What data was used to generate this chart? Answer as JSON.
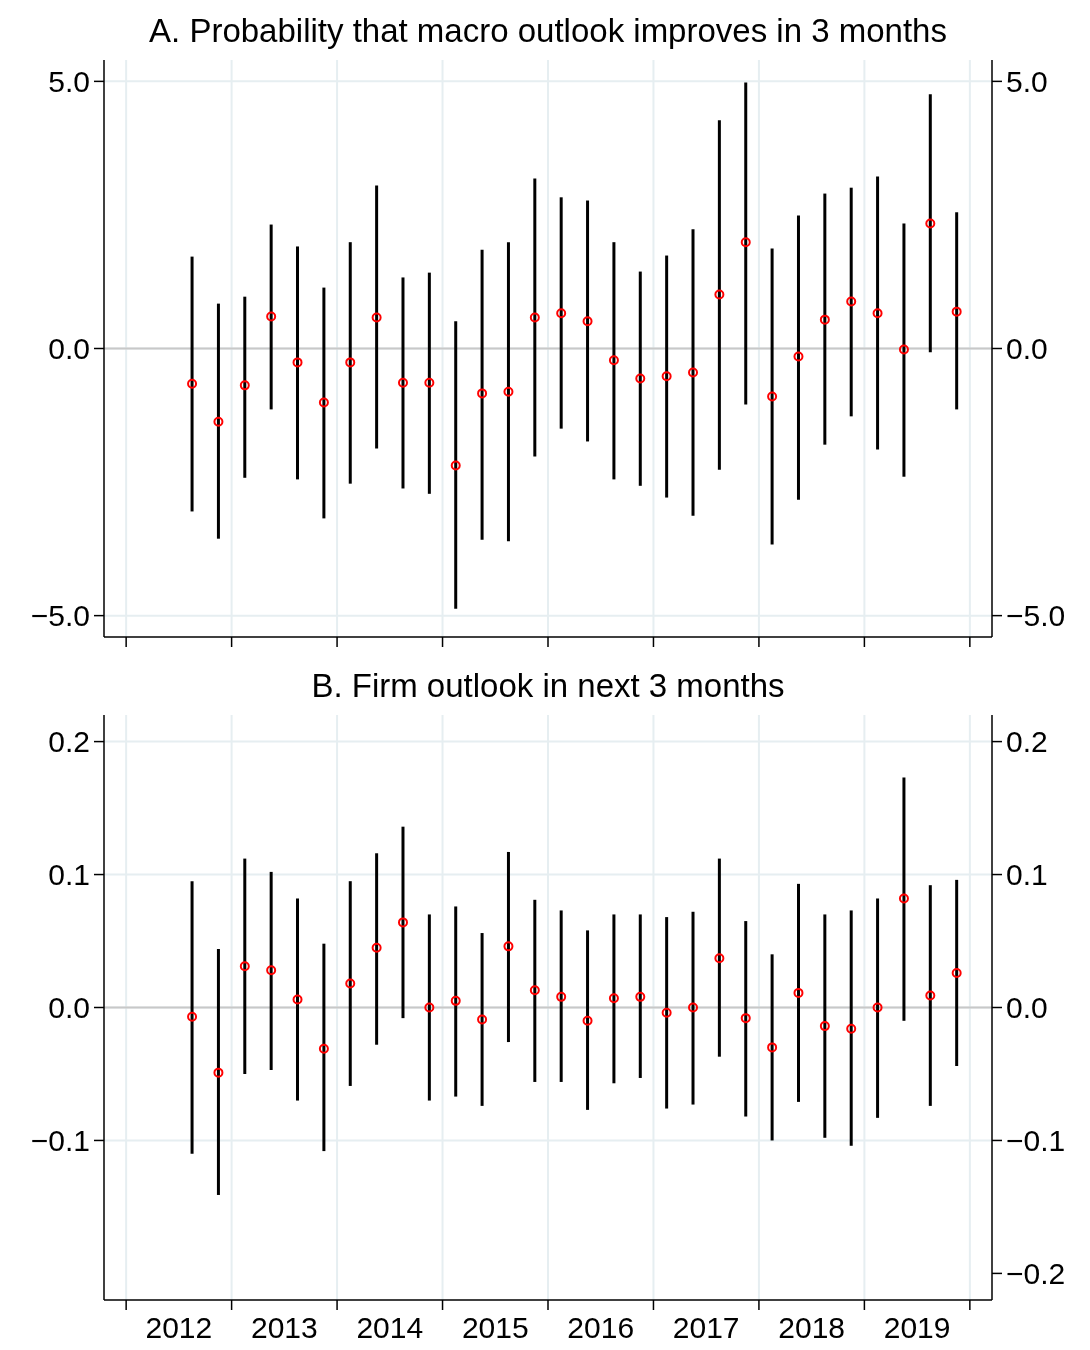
{
  "chart_data": [
    {
      "type": "scatter",
      "title": "A. Probability that macro outlook improves in 3 months",
      "x": [
        2012.625,
        2012.875,
        2013.125,
        2013.375,
        2013.625,
        2013.875,
        2014.125,
        2014.375,
        2014.625,
        2014.875,
        2015.125,
        2015.375,
        2015.625,
        2015.875,
        2016.125,
        2016.375,
        2016.625,
        2016.875,
        2017.125,
        2017.375,
        2017.625,
        2017.875,
        2018.125,
        2018.375,
        2018.625,
        2018.875,
        2019.125,
        2019.375,
        2019.625,
        2019.875
      ],
      "series": [
        {
          "color": "#ff0000",
          "values": [
            -0.66,
            -1.37,
            -0.69,
            0.6,
            -0.26,
            -1.01,
            -0.26,
            0.58,
            -0.64,
            -0.64,
            -2.19,
            -0.84,
            -0.81,
            0.58,
            0.66,
            0.51,
            -0.22,
            -0.56,
            -0.52,
            -0.45,
            1.01,
            1.99,
            -0.9,
            -0.15,
            0.54,
            0.88,
            0.66,
            -0.02,
            2.34,
            0.69
          ],
          "errors": [
            [
              -3.05,
              1.72
            ],
            [
              -3.56,
              0.84
            ],
            [
              -2.42,
              0.97
            ],
            [
              -1.14,
              2.32
            ],
            [
              -2.45,
              1.91
            ],
            [
              -3.18,
              1.14
            ],
            [
              -2.53,
              1.99
            ],
            [
              -1.87,
              3.05
            ],
            [
              -2.62,
              1.33
            ],
            [
              -2.72,
              1.42
            ],
            [
              -4.87,
              0.51
            ],
            [
              -3.58,
              1.85
            ],
            [
              -3.61,
              1.99
            ],
            [
              -2.02,
              3.18
            ],
            [
              -1.5,
              2.83
            ],
            [
              -1.74,
              2.77
            ],
            [
              -2.45,
              1.99
            ],
            [
              -2.57,
              1.44
            ],
            [
              -2.79,
              1.74
            ],
            [
              -3.13,
              2.23
            ],
            [
              -2.27,
              4.27
            ],
            [
              -1.05,
              4.98
            ],
            [
              -3.67,
              1.87
            ],
            [
              -2.83,
              2.49
            ],
            [
              -1.8,
              2.9
            ],
            [
              -1.27,
              3.01
            ],
            [
              -1.89,
              3.22
            ],
            [
              -2.4,
              2.34
            ],
            [
              -0.07,
              4.76
            ],
            [
              -1.14,
              2.55
            ]
          ]
        }
      ],
      "xlim": [
        2011.79,
        2020.21
      ],
      "xticks": [
        {
          "value": 2012,
          "label": null
        },
        {
          "value": 2013,
          "label": null
        },
        {
          "value": 2014,
          "label": null
        },
        {
          "value": 2015,
          "label": null
        },
        {
          "value": 2016,
          "label": null
        },
        {
          "value": 2017,
          "label": null
        },
        {
          "value": 2018,
          "label": null
        },
        {
          "value": 2019,
          "label": null
        },
        {
          "value": 2020,
          "label": null
        }
      ],
      "ylim": [
        -5.4,
        5.4
      ],
      "yticks": [
        {
          "value": 5,
          "label": "5.0"
        },
        {
          "value": 0,
          "label": "0.0"
        },
        {
          "value": -5,
          "label": "−5.0"
        }
      ],
      "y2lim": [
        -5.4,
        5.4
      ],
      "y2ticks": [
        {
          "value": 5,
          "label": "5.0"
        },
        {
          "value": 0,
          "label": "0.0"
        },
        {
          "value": -5,
          "label": "−5.0"
        }
      ],
      "ref_lines": [
        {
          "axis": "y",
          "value": 0,
          "color": "#c8c8c8"
        }
      ],
      "grid": true,
      "marker": "circle",
      "tick_labels": "y"
    },
    {
      "type": "scatter",
      "title": "B. Firm outlook in next 3 months",
      "x": [
        2012.625,
        2012.875,
        2013.125,
        2013.375,
        2013.625,
        2013.875,
        2014.125,
        2014.375,
        2014.625,
        2014.875,
        2015.125,
        2015.375,
        2015.625,
        2015.875,
        2016.125,
        2016.375,
        2016.625,
        2016.875,
        2017.125,
        2017.375,
        2017.625,
        2017.875,
        2018.125,
        2018.375,
        2018.625,
        2018.875,
        2019.125,
        2019.375,
        2019.625,
        2019.875
      ],
      "series": [
        {
          "color": "#ff0000",
          "values": [
            -0.007,
            -0.049,
            0.031,
            0.028,
            0.006,
            -0.031,
            0.018,
            0.045,
            0.064,
            0,
            0.005,
            -0.009,
            0.046,
            0.013,
            0.008,
            -0.01,
            0.007,
            0.008,
            -0.004,
            0,
            0.037,
            -0.008,
            -0.03,
            0.011,
            -0.014,
            -0.016,
            0,
            0.082,
            0.009,
            0.026
          ],
          "errors": [
            [
              -0.11,
              0.095
            ],
            [
              -0.141,
              0.044
            ],
            [
              -0.05,
              0.112
            ],
            [
              -0.047,
              0.102
            ],
            [
              -0.07,
              0.082
            ],
            [
              -0.108,
              0.048
            ],
            [
              -0.059,
              0.095
            ],
            [
              -0.028,
              0.116
            ],
            [
              -0.008,
              0.136
            ],
            [
              -0.07,
              0.07
            ],
            [
              -0.067,
              0.076
            ],
            [
              -0.074,
              0.056
            ],
            [
              -0.026,
              0.117
            ],
            [
              -0.056,
              0.081
            ],
            [
              -0.056,
              0.073
            ],
            [
              -0.077,
              0.058
            ],
            [
              -0.057,
              0.07
            ],
            [
              -0.053,
              0.07
            ],
            [
              -0.076,
              0.068
            ],
            [
              -0.073,
              0.072
            ],
            [
              -0.037,
              0.112
            ],
            [
              -0.082,
              0.065
            ],
            [
              -0.1,
              0.04
            ],
            [
              -0.071,
              0.093
            ],
            [
              -0.098,
              0.07
            ],
            [
              -0.104,
              0.073
            ],
            [
              -0.083,
              0.082
            ],
            [
              -0.01,
              0.173
            ],
            [
              -0.074,
              0.092
            ],
            [
              -0.044,
              0.096
            ]
          ]
        }
      ],
      "xlim": [
        2011.79,
        2020.21
      ],
      "xticks": [
        {
          "value": 2012,
          "label": null
        },
        {
          "value": 2012.5,
          "label": "2012"
        },
        {
          "value": 2013,
          "label": null
        },
        {
          "value": 2013.5,
          "label": "2013"
        },
        {
          "value": 2014,
          "label": null
        },
        {
          "value": 2014.5,
          "label": "2014"
        },
        {
          "value": 2015,
          "label": null
        },
        {
          "value": 2015.5,
          "label": "2015"
        },
        {
          "value": 2016,
          "label": null
        },
        {
          "value": 2016.5,
          "label": "2016"
        },
        {
          "value": 2017,
          "label": null
        },
        {
          "value": 2017.5,
          "label": "2017"
        },
        {
          "value": 2018,
          "label": null
        },
        {
          "value": 2018.5,
          "label": "2018"
        },
        {
          "value": 2019,
          "label": null
        },
        {
          "value": 2019.5,
          "label": "2019"
        },
        {
          "value": 2020,
          "label": null
        }
      ],
      "ylim": [
        -0.22,
        0.22
      ],
      "yticks": [
        {
          "value": 0.2,
          "label": "0.2"
        },
        {
          "value": 0.1,
          "label": "0.1"
        },
        {
          "value": 0,
          "label": "0.0"
        },
        {
          "value": -0.1,
          "label": "−0.1"
        }
      ],
      "y2lim": [
        -0.22,
        0.22
      ],
      "y2ticks": [
        {
          "value": 0.2,
          "label": "0.2"
        },
        {
          "value": 0.1,
          "label": "0.1"
        },
        {
          "value": 0,
          "label": "0.0"
        },
        {
          "value": -0.1,
          "label": "−0.1"
        },
        {
          "value": -0.2,
          "label": "−0.2"
        }
      ],
      "ref_lines": [
        {
          "axis": "y",
          "value": 0,
          "color": "#c8c8c8"
        }
      ],
      "grid": true,
      "marker": "circle"
    }
  ]
}
